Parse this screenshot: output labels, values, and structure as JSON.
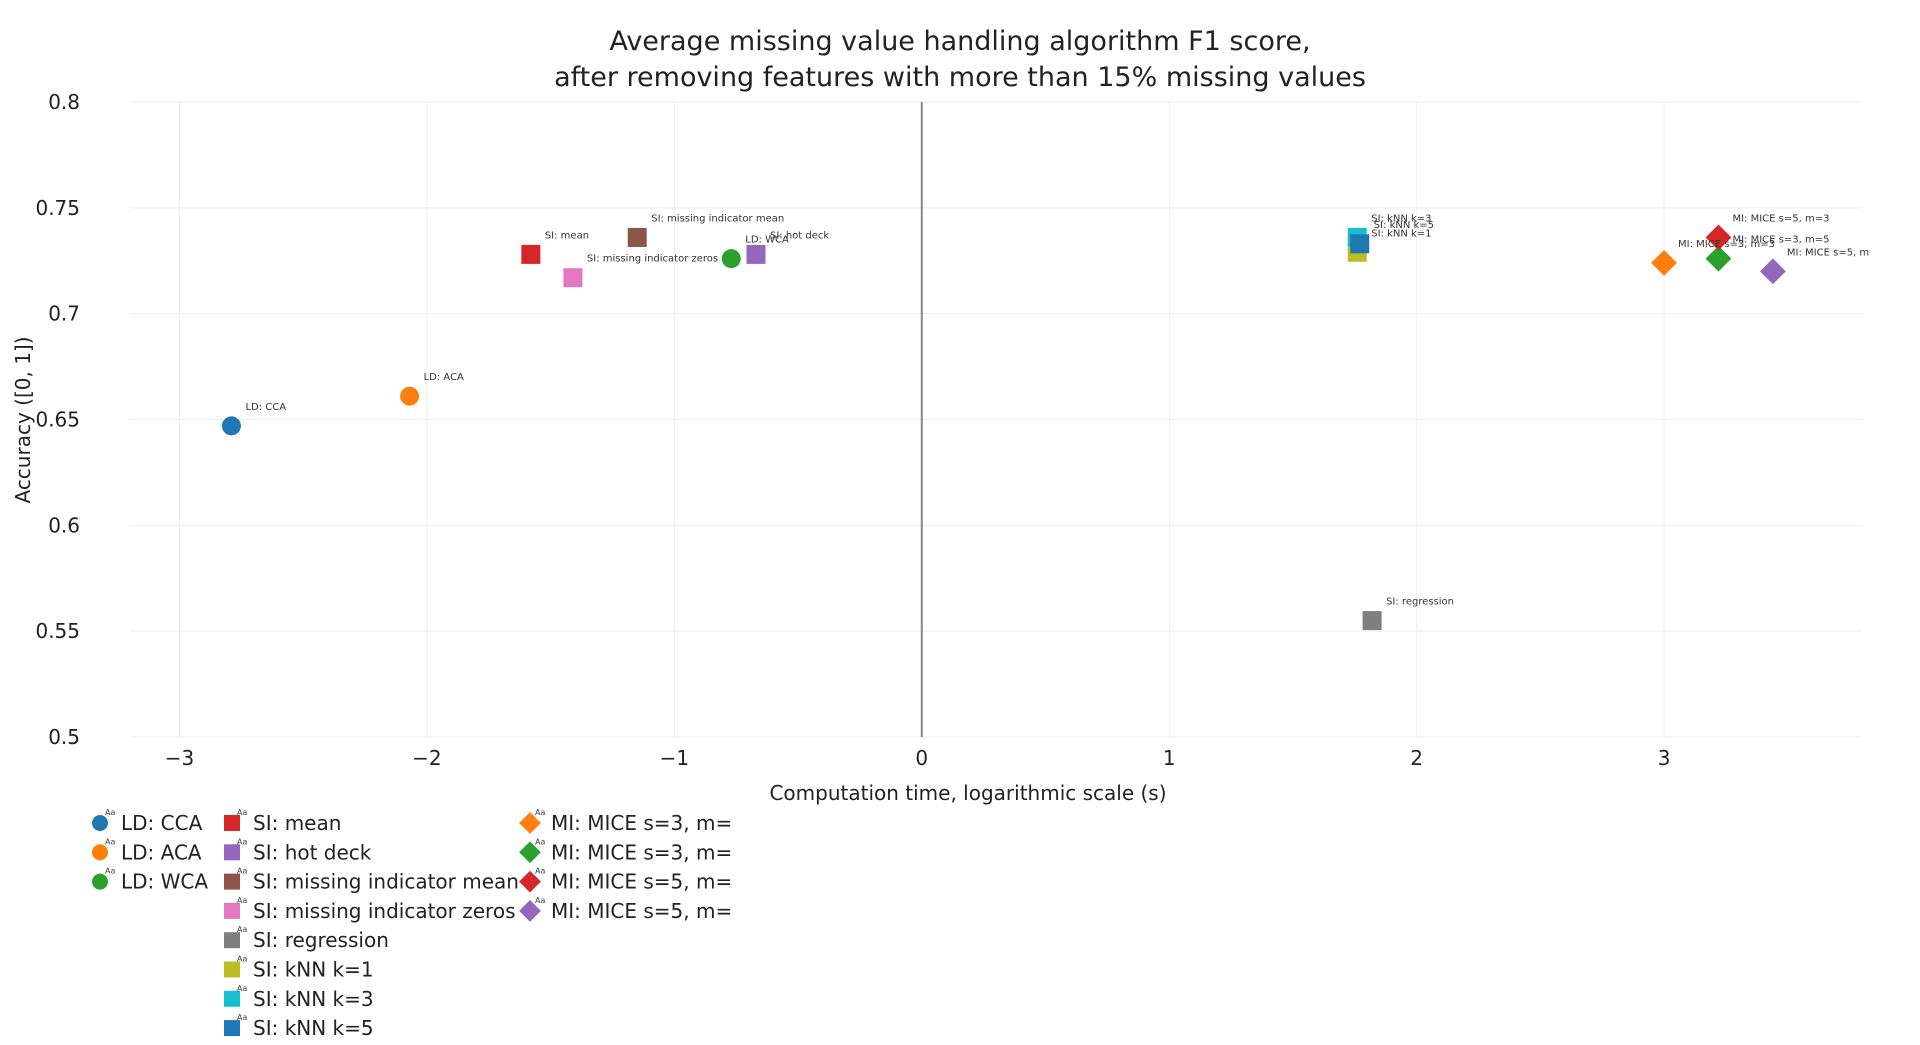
{
  "chart_data": {
    "type": "scatter",
    "title": "Average missing value handling algorithm F1 score,",
    "subtitle": "after removing features with more than 15% missing values",
    "xlabel": "Computation time, logarithmic scale (s)",
    "ylabel": "Accuracy ([0, 1])",
    "xlim": [
      -3.2,
      3.8
    ],
    "ylim": [
      0.5,
      0.8
    ],
    "xticks": [
      -3,
      -2,
      -1,
      0,
      1,
      2,
      3
    ],
    "xtick_labels": [
      "−3",
      "−2",
      "−1",
      "0",
      "1",
      "2",
      "3"
    ],
    "yticks": [
      0.5,
      0.55,
      0.6,
      0.65,
      0.7,
      0.75,
      0.8
    ],
    "ytick_labels": [
      "0.5",
      "0.55",
      "0.6",
      "0.65",
      "0.7",
      "0.75",
      "0.8"
    ],
    "grid": true,
    "legend_position": "bottom-left",
    "legend_marker_text": "Aa",
    "series": [
      {
        "name": "LD: CCA",
        "label": "LD: CCA",
        "x": -2.79,
        "y": 0.647,
        "symbol": "circle",
        "color": "#1f77b4",
        "legend_col": 0,
        "legend_row": 0
      },
      {
        "name": "LD: ACA",
        "label": "LD: ACA",
        "x": -2.07,
        "y": 0.661,
        "symbol": "circle",
        "color": "#ff7f0e",
        "legend_col": 0,
        "legend_row": 1
      },
      {
        "name": "LD: WCA",
        "label": "LD: WCA",
        "x": -0.77,
        "y": 0.726,
        "symbol": "circle",
        "color": "#2ca02c",
        "legend_col": 0,
        "legend_row": 2
      },
      {
        "name": "SI: mean",
        "label": "SI: mean",
        "x": -1.58,
        "y": 0.728,
        "symbol": "square",
        "color": "#d62728",
        "legend_col": 1,
        "legend_row": 0
      },
      {
        "name": "SI: hot deck",
        "label": "SI: hot deck",
        "x": -0.67,
        "y": 0.728,
        "symbol": "square",
        "color": "#9467bd",
        "legend_col": 1,
        "legend_row": 1
      },
      {
        "name": "SI: missing indicator mean",
        "label": "SI: missing indicator mean",
        "x": -1.15,
        "y": 0.736,
        "symbol": "square",
        "color": "#8c564b",
        "legend_col": 1,
        "legend_row": 2
      },
      {
        "name": "SI: missing indicator zeros",
        "label": "SI: missing indicator zeros",
        "x": -1.41,
        "y": 0.717,
        "symbol": "square",
        "color": "#e377c2",
        "legend_col": 1,
        "legend_row": 3
      },
      {
        "name": "SI: regression",
        "label": "SI: regression",
        "x": 1.82,
        "y": 0.555,
        "symbol": "square",
        "color": "#7f7f7f",
        "legend_col": 1,
        "legend_row": 4
      },
      {
        "name": "SI: kNN k=1",
        "label": "SI: kNN k=1",
        "x": 1.76,
        "y": 0.729,
        "symbol": "square",
        "color": "#bcbd22",
        "legend_col": 1,
        "legend_row": 5
      },
      {
        "name": "SI: kNN k=3",
        "label": "SI: kNN k=3",
        "x": 1.76,
        "y": 0.736,
        "symbol": "square",
        "color": "#17becf",
        "legend_col": 1,
        "legend_row": 6
      },
      {
        "name": "SI: kNN k=5",
        "label": "SI: kNN k=5",
        "x": 1.77,
        "y": 0.733,
        "symbol": "square",
        "color": "#1f77b4",
        "legend_col": 1,
        "legend_row": 7
      },
      {
        "name": "MI: MICE s=3, m=",
        "label": "MI: MICE s=3, m=3",
        "x": 3.0,
        "y": 0.724,
        "symbol": "diamond",
        "color": "#ff7f0e",
        "legend_col": 2,
        "legend_row": 0
      },
      {
        "name": "MI: MICE s=3, m=",
        "label": "MI: MICE s=3, m=5",
        "x": 3.22,
        "y": 0.726,
        "symbol": "diamond",
        "color": "#2ca02c",
        "legend_col": 2,
        "legend_row": 1
      },
      {
        "name": "MI: MICE s=5, m=",
        "label": "MI: MICE s=5, m=3",
        "x": 3.22,
        "y": 0.736,
        "symbol": "diamond",
        "color": "#d62728",
        "legend_col": 2,
        "legend_row": 2
      },
      {
        "name": "MI: MICE s=5, m=",
        "label": "MI: MICE s=5, m",
        "x": 3.44,
        "y": 0.72,
        "symbol": "diamond",
        "color": "#9467bd",
        "legend_col": 2,
        "legend_row": 3
      }
    ]
  }
}
